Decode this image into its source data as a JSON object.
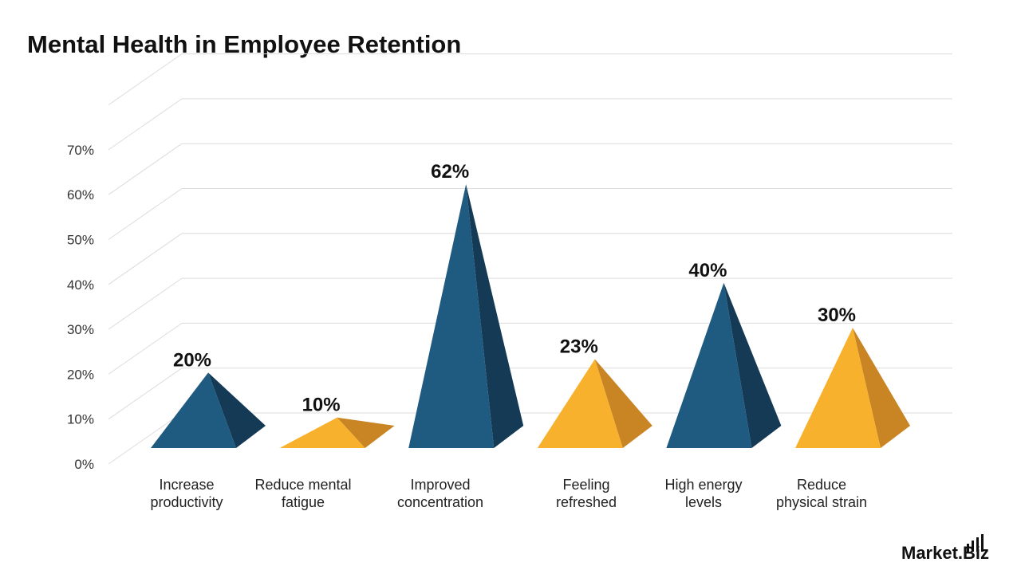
{
  "header": {
    "title": "Mental Health in Employee Retention"
  },
  "brand": {
    "text": "Market.Biz"
  },
  "chart_data": {
    "type": "bar",
    "style": "3d-pyramid",
    "title": "Mental Health in Employee Retention",
    "xlabel": "",
    "ylabel": "",
    "ylim": [
      0,
      70
    ],
    "y_ticks": [
      0,
      10,
      20,
      30,
      40,
      50,
      60,
      70
    ],
    "y_tick_labels": [
      "0%",
      "10%",
      "20%",
      "30%",
      "40%",
      "50%",
      "60%",
      "70%"
    ],
    "grid": true,
    "categories": [
      [
        "Increase",
        "productivity"
      ],
      [
        "Reduce mental",
        "fatigue"
      ],
      [
        "Improved",
        "concentration"
      ],
      [
        "Feeling",
        "refreshed"
      ],
      [
        "High energy",
        "levels"
      ],
      [
        "Reduce",
        "physical strain"
      ]
    ],
    "values": [
      20,
      10,
      62,
      23,
      40,
      30
    ],
    "value_labels": [
      "20%",
      "10%",
      "62%",
      "23%",
      "40%",
      "30%"
    ],
    "colors": [
      "#1f5a80",
      "#f8b12c",
      "#1f5a80",
      "#f8b12c",
      "#1f5a80",
      "#f8b12c"
    ],
    "shade_colors": [
      "#143a55",
      "#c98424",
      "#143a55",
      "#c98424",
      "#143a55",
      "#c98424"
    ]
  }
}
